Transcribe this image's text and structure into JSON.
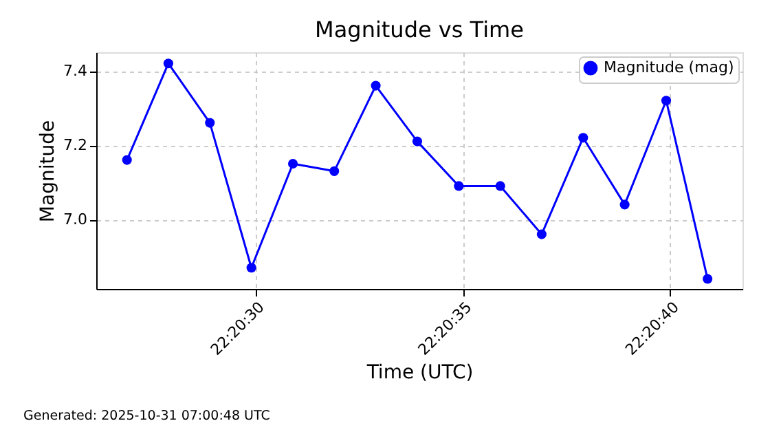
{
  "chart_data": {
    "type": "line",
    "title": "Magnitude vs Time",
    "xlabel": "Time (UTC)",
    "ylabel": "Magnitude",
    "x": [
      22.340806,
      22.341083,
      22.341361,
      22.341639,
      22.341917,
      22.342194,
      22.342472,
      22.34275,
      22.343028,
      22.343306,
      22.343583,
      22.343861,
      22.344139,
      22.344417,
      22.344694
    ],
    "series": [
      {
        "name": "Magnitude (mag)",
        "color": "#0000ff",
        "values": [
          7.16,
          7.42,
          7.26,
          6.87,
          7.15,
          7.13,
          7.36,
          7.21,
          7.09,
          7.09,
          6.96,
          7.22,
          7.04,
          7.32,
          6.84
        ]
      }
    ],
    "xlim": [
      22.3406,
      22.344928
    ],
    "xticks": [
      {
        "value": 22.341667,
        "label": "22:20:30"
      },
      {
        "value": 22.343056,
        "label": "22:20:35"
      },
      {
        "value": 22.344444,
        "label": "22:20:40"
      }
    ],
    "ylim": [
      6.813,
      7.45
    ],
    "yticks": [
      {
        "value": 7.0,
        "label": "7.0"
      },
      {
        "value": 7.2,
        "label": "7.2"
      },
      {
        "value": 7.4,
        "label": "7.4"
      }
    ],
    "grid": true,
    "legend": "top right",
    "marker": "circle",
    "line_style": "solid",
    "annotations": [
      "Generated: 2025-10-31 07:00:48 UTC"
    ]
  }
}
